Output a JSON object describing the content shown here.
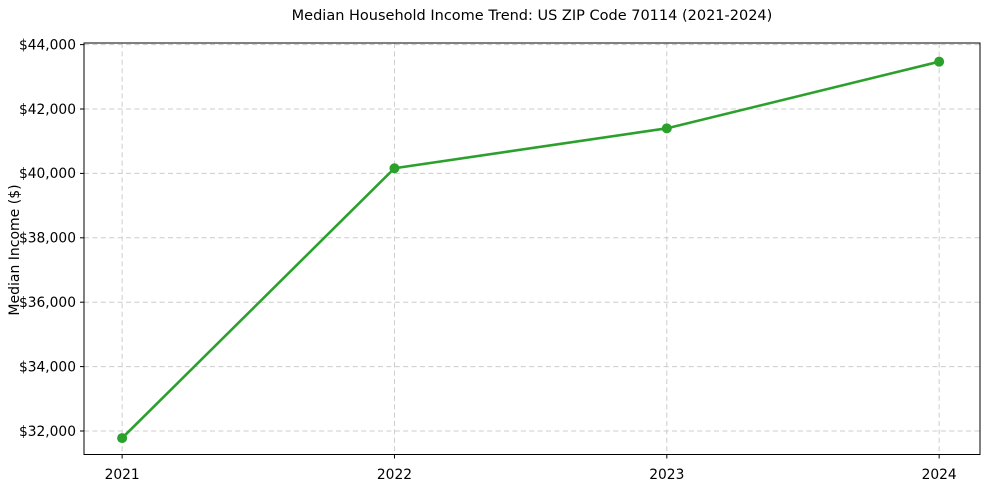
{
  "chart_data": {
    "type": "line",
    "title": "Median Household Income Trend: US ZIP Code 70114 (2021-2024)",
    "xlabel": "",
    "ylabel": "Median Income ($)",
    "x": [
      2021,
      2022,
      2023,
      2024
    ],
    "values": [
      31780,
      40160,
      41400,
      43470
    ],
    "xlim": [
      2020.86,
      2024.15
    ],
    "ylim": [
      31270,
      44050
    ],
    "xticks": {
      "values": [
        2021,
        2022,
        2023,
        2024
      ],
      "labels": [
        "2021",
        "2022",
        "2023",
        "2024"
      ]
    },
    "yticks": {
      "values": [
        32000,
        34000,
        36000,
        38000,
        40000,
        42000,
        44000
      ],
      "labels": [
        "$32,000",
        "$34,000",
        "$36,000",
        "$38,000",
        "$40,000",
        "$42,000",
        "$44,000"
      ]
    },
    "grid": true,
    "grid_style": "dashed",
    "legend": "none",
    "style": {
      "line_color": "#2ca02c",
      "marker_color": "#2ca02c",
      "marker_radius": 5,
      "line_width": 2.6,
      "grid_color": "#cccccc",
      "axis_color": "#000000",
      "text_color": "#000000",
      "background": "#ffffff"
    }
  }
}
